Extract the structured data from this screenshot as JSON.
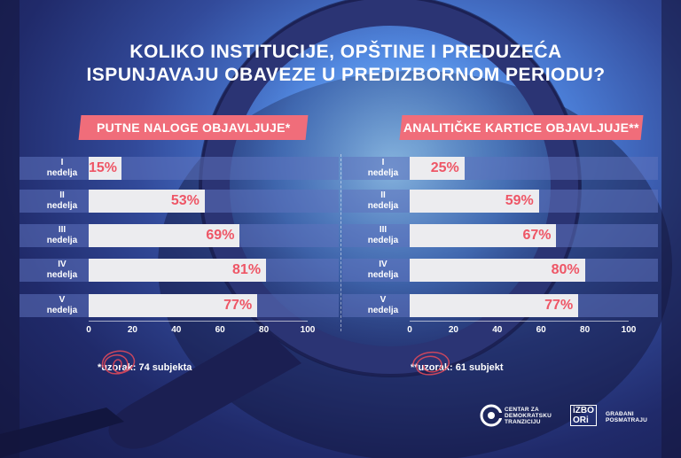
{
  "title": {
    "line1": "KOLIKO INSTITUCIJE, OPŠTINE I PREDUZEĆA",
    "line2": "ISPUNJAVAJU OBAVEZE U PREDIZBORNOM PERIODU?"
  },
  "colors": {
    "accent": "#f06d7a",
    "value_text": "#ee5666",
    "bar": "#ececef",
    "band": "#5f73be"
  },
  "chart_data": [
    {
      "type": "bar",
      "orientation": "horizontal",
      "title": "PUTNE NALOGE OBJAVLJUJE*",
      "categories": [
        {
          "top": "I",
          "bottom": "nedelja"
        },
        {
          "top": "II",
          "bottom": "nedelja"
        },
        {
          "top": "III",
          "bottom": "nedelja"
        },
        {
          "top": "IV",
          "bottom": "nedelja"
        },
        {
          "top": "V",
          "bottom": "nedelja"
        }
      ],
      "values": [
        15,
        53,
        69,
        81,
        77
      ],
      "value_labels": [
        "15%",
        "53%",
        "69%",
        "81%",
        "77%"
      ],
      "xlim": [
        0,
        100
      ],
      "xticks": [
        "0",
        "20",
        "40",
        "60",
        "80",
        "100"
      ],
      "footnote": "*uzorak: 74 subjekta"
    },
    {
      "type": "bar",
      "orientation": "horizontal",
      "title": "ANALITIČKE KARTICE OBJAVLJUJE**",
      "categories": [
        {
          "top": "I",
          "bottom": "nedelja"
        },
        {
          "top": "II",
          "bottom": "nedelja"
        },
        {
          "top": "III",
          "bottom": "nedelja"
        },
        {
          "top": "IV",
          "bottom": "nedelja"
        },
        {
          "top": "V",
          "bottom": "nedelja"
        }
      ],
      "values": [
        25,
        59,
        67,
        80,
        77
      ],
      "value_labels": [
        "25%",
        "59%",
        "67%",
        "80%",
        "77%"
      ],
      "xlim": [
        0,
        100
      ],
      "xticks": [
        "0",
        "20",
        "40",
        "60",
        "80",
        "100"
      ],
      "footnote": "**uzorak: 61 subjekt"
    }
  ],
  "logos": {
    "crta": {
      "line1": "CENTAR ZA",
      "line2": "DEMOKRATSKU",
      "line3": "TRANZICIJU"
    },
    "izbori": {
      "mark_top": "iZBO",
      "mark_bottom": "ORi",
      "line1": "GRAĐANI",
      "line2": "POSMATRAJU"
    }
  }
}
